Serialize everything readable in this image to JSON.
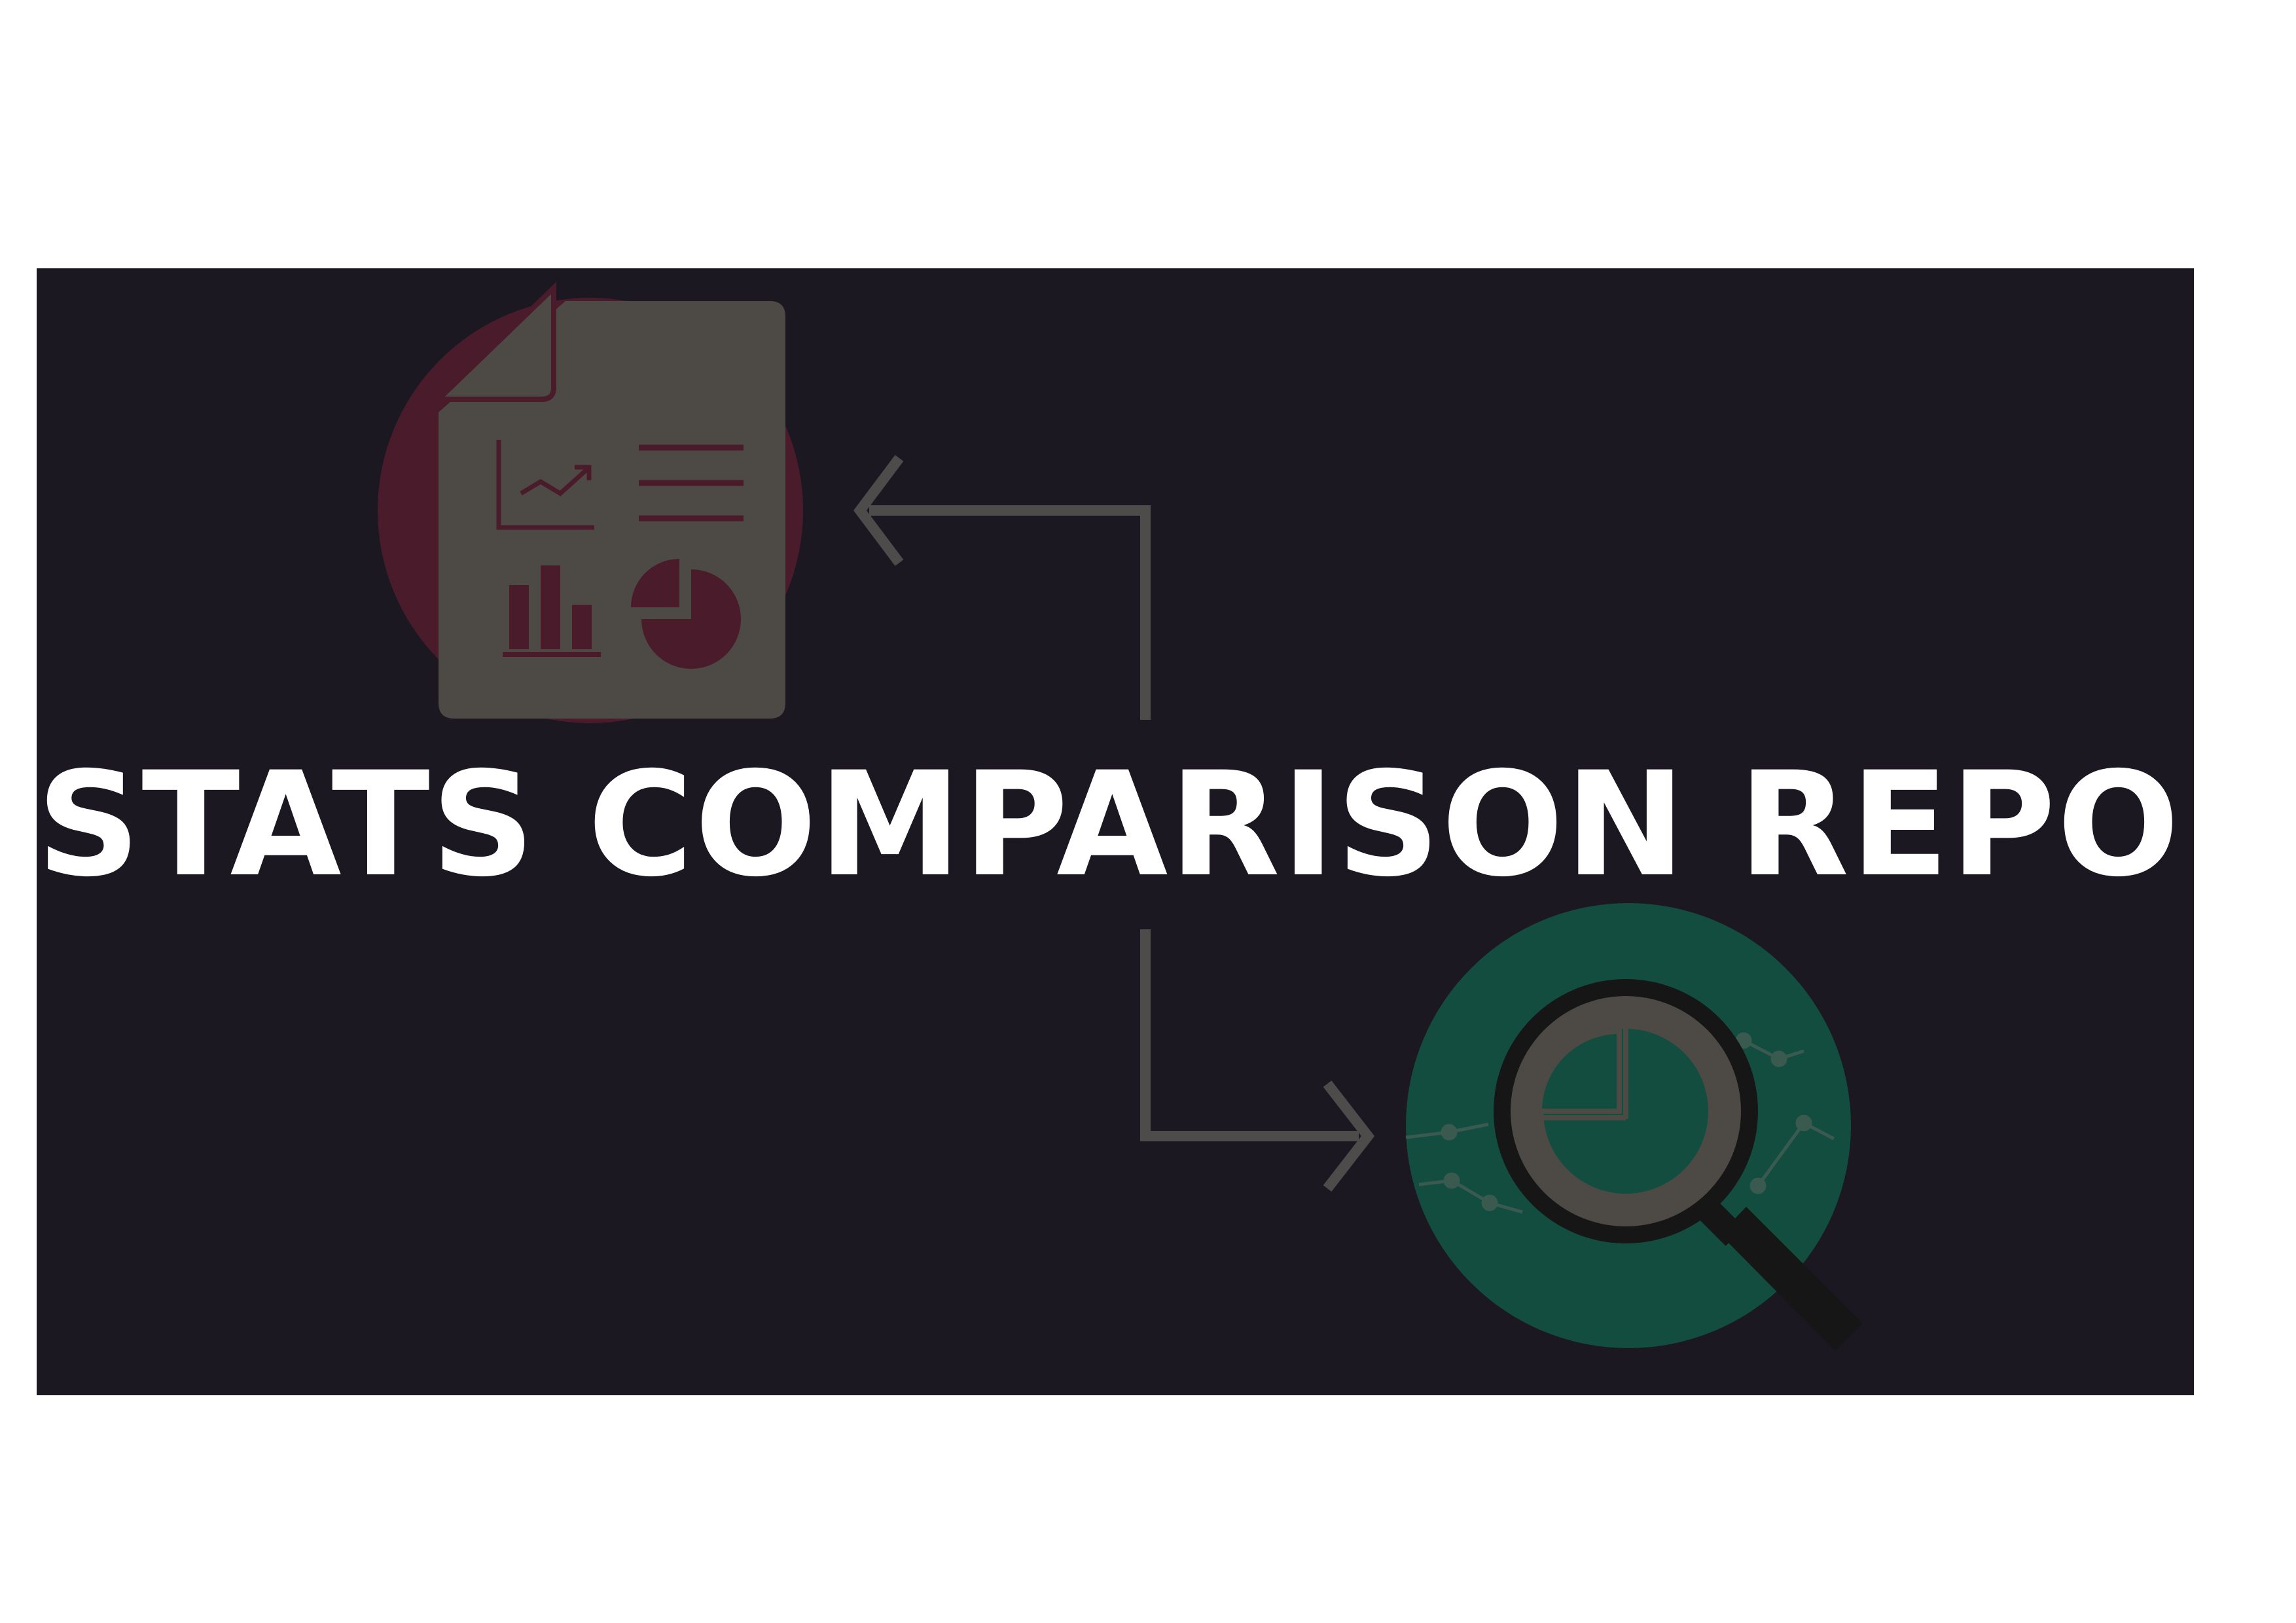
{
  "banner": {
    "title": "STATS COMPARISON REPORT"
  },
  "colors": {
    "page_background": "#ffffff",
    "banner_background": "#1b1822",
    "title_text": "#ffffff",
    "report_circle": "#4a1c2b",
    "document_body": "#4d4a46",
    "document_marks": "#4a1c2b",
    "analysis_circle": "#134d3f",
    "magnifier_ring": "#161616",
    "magnifier_lens": "#4d4a46",
    "connector_arrow": "#4e4b4b",
    "graph_lines": "#3a5a50"
  },
  "icons": {
    "report": "report-document-icon",
    "analysis": "magnifier-analysis-icon",
    "connector": "flow-arrow-icon"
  }
}
